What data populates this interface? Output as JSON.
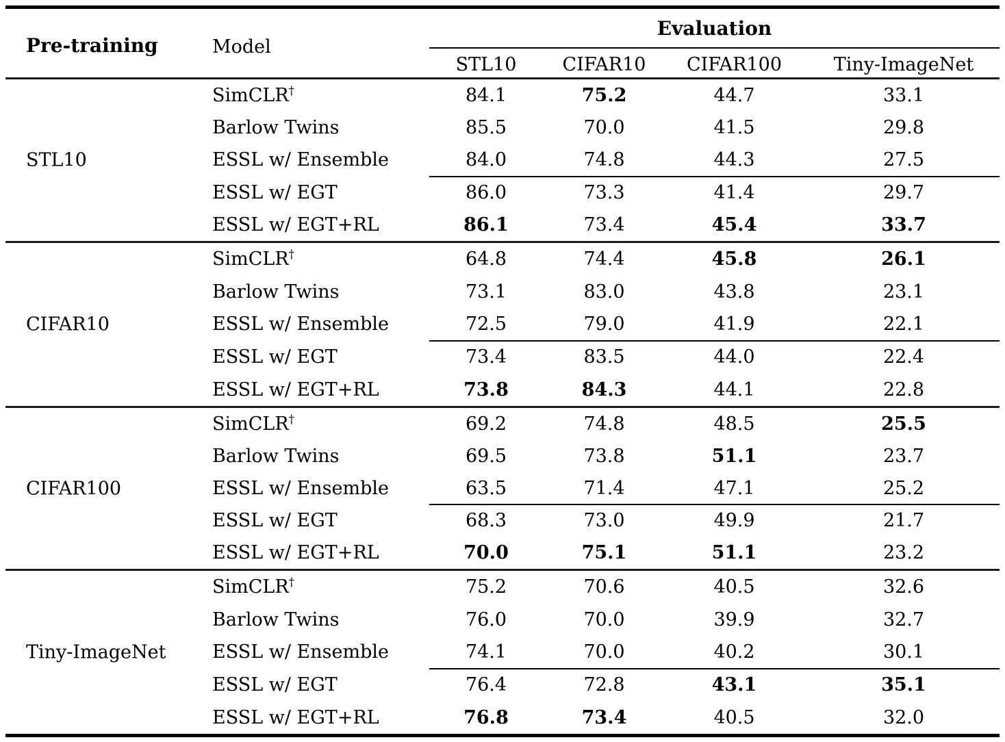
{
  "page": {
    "background_color": "#ffffff",
    "text_color": "#000000"
  },
  "table": {
    "header": {
      "pretraining_label": "Pre-training",
      "model_label": "Model",
      "evaluation_label": "Evaluation",
      "eval_columns": [
        "STL10",
        "CIFAR10",
        "CIFAR100",
        "Tiny-ImageNet"
      ]
    },
    "groups": [
      {
        "pretraining": "STL10",
        "rows": [
          {
            "model": "SimCLR",
            "superscript": "†",
            "values": [
              "84.1",
              "75.2",
              "44.7",
              "33.1"
            ],
            "bold": [
              false,
              true,
              false,
              false
            ]
          },
          {
            "model": "Barlow Twins",
            "values": [
              "85.5",
              "70.0",
              "41.5",
              "29.8"
            ],
            "bold": [
              false,
              false,
              false,
              false
            ]
          },
          {
            "model": "ESSL w/ Ensemble",
            "values": [
              "84.0",
              "74.8",
              "44.3",
              "27.5"
            ],
            "bold": [
              false,
              false,
              false,
              false
            ]
          },
          {
            "model": "ESSL w/ EGT",
            "values": [
              "86.0",
              "73.3",
              "41.4",
              "29.7"
            ],
            "bold": [
              false,
              false,
              false,
              false
            ]
          },
          {
            "model": "ESSL w/ EGT+RL",
            "values": [
              "86.1",
              "73.4",
              "45.4",
              "33.7"
            ],
            "bold": [
              true,
              false,
              true,
              true
            ]
          }
        ]
      },
      {
        "pretraining": "CIFAR10",
        "rows": [
          {
            "model": "SimCLR",
            "superscript": "†",
            "values": [
              "64.8",
              "74.4",
              "45.8",
              "26.1"
            ],
            "bold": [
              false,
              false,
              true,
              true
            ]
          },
          {
            "model": "Barlow Twins",
            "values": [
              "73.1",
              "83.0",
              "43.8",
              "23.1"
            ],
            "bold": [
              false,
              false,
              false,
              false
            ]
          },
          {
            "model": "ESSL w/ Ensemble",
            "values": [
              "72.5",
              "79.0",
              "41.9",
              "22.1"
            ],
            "bold": [
              false,
              false,
              false,
              false
            ]
          },
          {
            "model": "ESSL w/ EGT",
            "values": [
              "73.4",
              "83.5",
              "44.0",
              "22.4"
            ],
            "bold": [
              false,
              false,
              false,
              false
            ]
          },
          {
            "model": "ESSL w/ EGT+RL",
            "values": [
              "73.8",
              "84.3",
              "44.1",
              "22.8"
            ],
            "bold": [
              true,
              true,
              false,
              false
            ]
          }
        ]
      },
      {
        "pretraining": "CIFAR100",
        "rows": [
          {
            "model": "SimCLR",
            "superscript": "†",
            "values": [
              "69.2",
              "74.8",
              "48.5",
              "25.5"
            ],
            "bold": [
              false,
              false,
              false,
              true
            ]
          },
          {
            "model": "Barlow Twins",
            "values": [
              "69.5",
              "73.8",
              "51.1",
              "23.7"
            ],
            "bold": [
              false,
              false,
              true,
              false
            ]
          },
          {
            "model": "ESSL w/ Ensemble",
            "values": [
              "63.5",
              "71.4",
              "47.1",
              "25.2"
            ],
            "bold": [
              false,
              false,
              false,
              false
            ]
          },
          {
            "model": "ESSL w/ EGT",
            "values": [
              "68.3",
              "73.0",
              "49.9",
              "21.7"
            ],
            "bold": [
              false,
              false,
              false,
              false
            ]
          },
          {
            "model": "ESSL w/ EGT+RL",
            "values": [
              "70.0",
              "75.1",
              "51.1",
              "23.2"
            ],
            "bold": [
              true,
              true,
              true,
              false
            ]
          }
        ]
      },
      {
        "pretraining": "Tiny-ImageNet",
        "rows": [
          {
            "model": "SimCLR",
            "superscript": "†",
            "values": [
              "75.2",
              "70.6",
              "40.5",
              "32.6"
            ],
            "bold": [
              false,
              false,
              false,
              false
            ]
          },
          {
            "model": "Barlow Twins",
            "values": [
              "76.0",
              "70.0",
              "39.9",
              "32.7"
            ],
            "bold": [
              false,
              false,
              false,
              false
            ]
          },
          {
            "model": "ESSL w/ Ensemble",
            "values": [
              "74.1",
              "70.0",
              "40.2",
              "30.1"
            ],
            "bold": [
              false,
              false,
              false,
              false
            ]
          },
          {
            "model": "ESSL w/ EGT",
            "values": [
              "76.4",
              "72.8",
              "43.1",
              "35.1"
            ],
            "bold": [
              false,
              false,
              true,
              true
            ]
          },
          {
            "model": "ESSL w/ EGT+RL",
            "values": [
              "76.8",
              "73.4",
              "40.5",
              "32.0"
            ],
            "bold": [
              true,
              true,
              false,
              false
            ]
          }
        ]
      }
    ]
  }
}
